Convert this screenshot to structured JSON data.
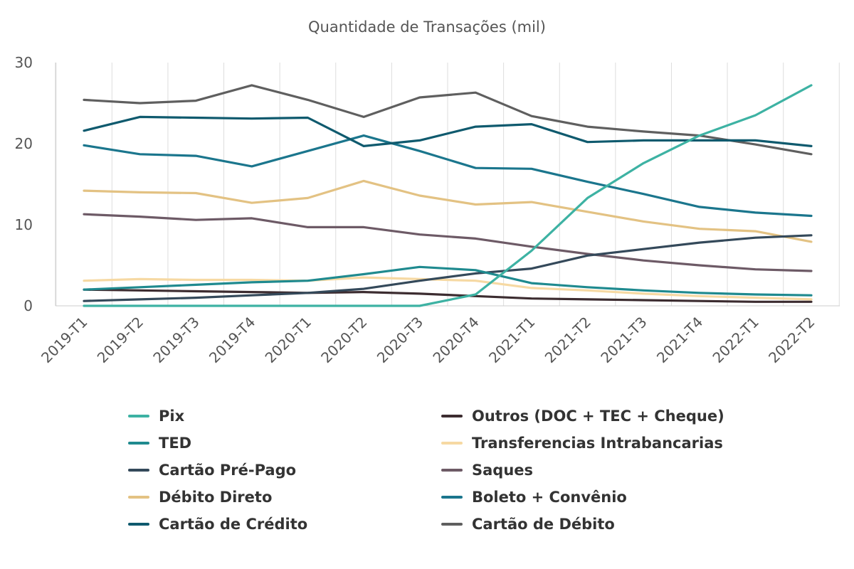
{
  "chart_data": {
    "type": "line",
    "title": "Quantidade de Transações (mil)",
    "xlabel": "",
    "ylabel": "",
    "ylim": [
      0,
      30
    ],
    "yticks": [
      0,
      10,
      20,
      30
    ],
    "grid": "vertical",
    "legend_position": "bottom",
    "categories": [
      "2019-T1",
      "2019-T2",
      "2019-T3",
      "2019-T4",
      "2020-T1",
      "2020-T2",
      "2020-T3",
      "2020-T4",
      "2021-T1",
      "2021-T2",
      "2021-T3",
      "2021-T4",
      "2022-T1",
      "2022-T2"
    ],
    "series": [
      {
        "name": "Pix",
        "color": "#3db2a3",
        "values": [
          0,
          0,
          0,
          0,
          0,
          0,
          0,
          1.4,
          6.8,
          13.3,
          17.6,
          21.0,
          23.5,
          27.2
        ]
      },
      {
        "name": "TED",
        "color": "#1f8a8f",
        "values": [
          2.0,
          2.3,
          2.6,
          2.9,
          3.1,
          3.9,
          4.8,
          4.4,
          2.8,
          2.3,
          1.9,
          1.6,
          1.4,
          1.3
        ]
      },
      {
        "name": "Cartão Pré-Pago",
        "color": "#34495a",
        "values": [
          0.6,
          0.8,
          1.0,
          1.3,
          1.6,
          2.1,
          3.1,
          4.0,
          4.6,
          6.2,
          7.0,
          7.8,
          8.4,
          8.7
        ]
      },
      {
        "name": "Débito Direto",
        "color": "#e3c283",
        "values": [
          14.2,
          14.0,
          13.9,
          12.7,
          13.3,
          15.4,
          13.6,
          12.5,
          12.8,
          11.6,
          10.4,
          9.5,
          9.2,
          7.9
        ]
      },
      {
        "name": "Cartão de Crédito",
        "color": "#0f5a6e",
        "values": [
          21.6,
          23.3,
          23.2,
          23.1,
          23.2,
          19.7,
          20.4,
          22.1,
          22.4,
          20.2,
          20.4,
          20.4,
          20.4,
          19.7
        ]
      },
      {
        "name": "Outros (DOC + TEC + Cheque)",
        "color": "#3c2c30",
        "values": [
          2.0,
          1.9,
          1.8,
          1.7,
          1.6,
          1.7,
          1.5,
          1.2,
          0.9,
          0.8,
          0.7,
          0.6,
          0.5,
          0.5
        ]
      },
      {
        "name": "Transferencias Intrabancarias",
        "color": "#f6d9a3",
        "values": [
          3.1,
          3.3,
          3.2,
          3.2,
          3.1,
          3.5,
          3.3,
          3.1,
          2.2,
          1.9,
          1.5,
          1.2,
          1.0,
          0.8
        ]
      },
      {
        "name": "Saques",
        "color": "#6d5a66",
        "values": [
          11.3,
          11.0,
          10.6,
          10.8,
          9.7,
          9.7,
          8.8,
          8.3,
          7.3,
          6.4,
          5.6,
          5.0,
          4.5,
          4.3
        ]
      },
      {
        "name": "Boleto + Convênio",
        "color": "#1b768d",
        "values": [
          19.8,
          18.7,
          18.5,
          17.2,
          19.1,
          21.0,
          19.1,
          17.0,
          16.9,
          15.3,
          13.8,
          12.2,
          11.5,
          11.1
        ]
      },
      {
        "name": "Cartão de Débito",
        "color": "#5f5f5f",
        "values": [
          25.4,
          25.0,
          25.3,
          27.2,
          25.4,
          23.3,
          25.7,
          26.3,
          23.4,
          22.1,
          21.5,
          21.0,
          19.9,
          18.7
        ]
      }
    ]
  }
}
